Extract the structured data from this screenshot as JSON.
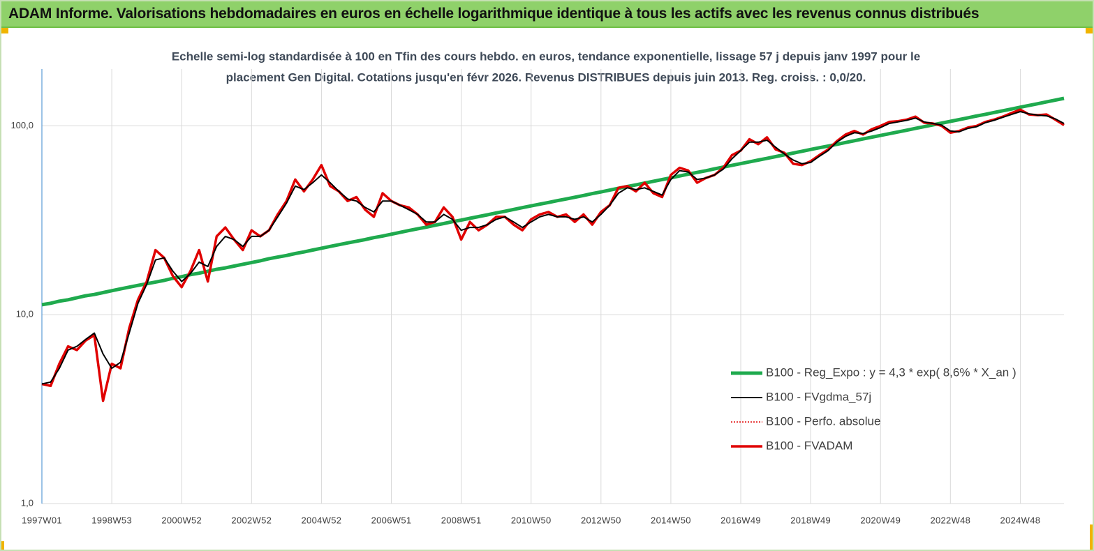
{
  "header": {
    "title": "ADAM Informe. Valorisations hebdomadaires en euros en échelle logarithmique identique à tous les actifs avec les revenus connus distribués"
  },
  "chart_data": {
    "type": "line",
    "title": [
      "Echelle semi-log standardisée à 100 en Tfin des cours hebdo. en euros, tendance exponentielle, lissage 57 j depuis janv 1997 pour le",
      "placement Gen Digital. Cotations jusqu'en févr 2026. Revenus DISTRIBUES depuis juin 2013. Reg. croiss. : 0,0/20."
    ],
    "categories": [
      "1997W01",
      null,
      null,
      null,
      null,
      null,
      null,
      null,
      "1998W53",
      null,
      null,
      null,
      null,
      null,
      null,
      null,
      "2000W52",
      null,
      null,
      null,
      null,
      null,
      null,
      null,
      "2002W52",
      null,
      null,
      null,
      null,
      null,
      null,
      null,
      "2004W52",
      null,
      null,
      null,
      null,
      null,
      null,
      null,
      "2006W51",
      null,
      null,
      null,
      null,
      null,
      null,
      null,
      "2008W51",
      null,
      null,
      null,
      null,
      null,
      null,
      null,
      "2010W50",
      null,
      null,
      null,
      null,
      null,
      null,
      null,
      "2012W50",
      null,
      null,
      null,
      null,
      null,
      null,
      null,
      "2014W50",
      null,
      null,
      null,
      null,
      null,
      null,
      null,
      "2016W49",
      null,
      null,
      null,
      null,
      null,
      null,
      null,
      "2018W49",
      null,
      null,
      null,
      null,
      null,
      null,
      null,
      "2020W49",
      null,
      null,
      null,
      null,
      null,
      null,
      null,
      "2022W48",
      null,
      null,
      null,
      null,
      null,
      null,
      null,
      "2024W48",
      null,
      null,
      null,
      null,
      null
    ],
    "log_scale": true,
    "ylim": [
      1,
      200
    ],
    "yticks": [
      {
        "value": 1,
        "label": "1,0"
      },
      {
        "value": 10,
        "label": "10,0"
      },
      {
        "value": 100,
        "label": "100,0"
      }
    ],
    "grid": true,
    "legend": "lower-right",
    "series": [
      {
        "name": "B100 - Reg_Expo : y = 4,3 * exp( 8,6% *  X_an )",
        "color": "#1faa4e",
        "width": 5,
        "dash": "none",
        "values": [
          11.3,
          11.5,
          11.8,
          12.0,
          12.3,
          12.6,
          12.8,
          13.1,
          13.4,
          13.7,
          14.0,
          14.3,
          14.6,
          14.9,
          15.2,
          15.6,
          15.9,
          16.3,
          16.6,
          17.0,
          17.4,
          17.7,
          18.1,
          18.5,
          18.9,
          19.3,
          19.8,
          20.2,
          20.6,
          21.1,
          21.5,
          22.0,
          22.5,
          23.0,
          23.5,
          24.0,
          24.5,
          25.0,
          25.6,
          26.1,
          26.7,
          27.3,
          27.9,
          28.5,
          29.1,
          29.8,
          30.4,
          31.1,
          31.7,
          32.4,
          33.1,
          33.8,
          34.6,
          35.3,
          36.1,
          36.9,
          37.7,
          38.5,
          39.3,
          40.2,
          41.0,
          41.9,
          42.8,
          43.8,
          44.7,
          45.7,
          46.7,
          47.7,
          48.7,
          49.8,
          50.9,
          52.0,
          53.1,
          54.3,
          55.5,
          56.7,
          57.9,
          59.2,
          60.5,
          61.8,
          63.1,
          64.5,
          65.9,
          67.3,
          68.8,
          70.3,
          71.8,
          73.4,
          75.0,
          76.6,
          78.2,
          79.9,
          81.7,
          83.4,
          85.3,
          87.1,
          89.0,
          90.9,
          92.9,
          94.9,
          97.0,
          99.1,
          101.3,
          103.5,
          105.7,
          108.0,
          110.4,
          112.8,
          115.2,
          117.7,
          120.3,
          122.9,
          125.6,
          128.3,
          131.1,
          134.0,
          136.9,
          139.9
        ]
      },
      {
        "name": "B100 - FVgdma_57j",
        "color": "#000000",
        "width": 2,
        "dash": "none",
        "values": [
          4.3,
          4.4,
          5.2,
          6.5,
          6.8,
          7.4,
          8.0,
          6.2,
          5.2,
          5.6,
          8.0,
          11.5,
          14.5,
          19.5,
          20,
          17,
          15,
          16.5,
          19,
          18,
          23,
          26,
          25,
          23,
          26,
          26,
          28,
          33,
          39,
          48,
          46,
          50,
          55,
          50,
          45,
          41,
          40,
          37,
          35,
          40,
          40,
          38,
          36,
          34,
          31,
          31,
          34,
          32,
          28,
          29,
          29,
          30,
          32,
          33,
          31,
          29,
          31,
          33,
          34,
          33,
          33,
          32,
          33,
          31,
          34,
          38,
          44,
          47,
          46,
          47,
          45,
          43,
          52,
          58,
          57,
          52,
          53,
          55,
          59,
          67,
          74,
          82,
          82,
          84,
          77,
          71,
          66,
          63,
          64,
          69,
          74,
          82,
          88,
          92,
          91,
          94,
          98,
          103,
          105,
          107,
          110,
          105,
          103,
          101,
          94,
          93,
          97,
          99,
          104,
          107,
          111,
          115,
          119,
          116,
          114,
          113,
          109,
          103
        ]
      },
      {
        "name": "B100 - Perfo. absolue",
        "color": "#e00000",
        "width": 1.5,
        "dash": "2 2",
        "values": [
          4.3,
          4.2,
          5.5,
          6.8,
          6.5,
          7.3,
          7.8,
          3.5,
          5.5,
          5.2,
          8.5,
          12,
          15,
          22,
          20,
          16,
          14,
          17,
          22,
          15,
          26,
          29,
          25,
          22,
          28,
          26,
          28,
          34,
          40,
          52,
          45,
          52,
          62,
          48,
          45,
          40,
          42,
          36,
          33,
          44,
          40,
          38,
          37,
          34,
          30,
          31,
          37,
          33,
          25,
          31,
          28,
          30,
          33,
          33,
          30,
          28,
          32,
          34,
          35,
          33,
          34,
          31,
          34,
          30,
          35,
          38,
          47,
          48,
          45,
          50,
          44,
          42,
          55,
          60,
          58,
          50,
          53,
          55,
          60,
          70,
          74,
          85,
          80,
          87,
          75,
          72,
          63,
          62,
          65,
          70,
          75,
          83,
          90,
          94,
          90,
          96,
          100,
          105,
          106,
          108,
          112,
          104,
          103,
          100,
          92,
          94,
          98,
          100,
          105,
          108,
          112,
          117,
          122,
          115,
          114,
          115,
          108,
          101
        ]
      },
      {
        "name": "B100 - FVADAM",
        "color": "#e00000",
        "width": 3.5,
        "dash": "none",
        "values": [
          4.3,
          4.2,
          5.5,
          6.8,
          6.5,
          7.3,
          7.8,
          3.5,
          5.5,
          5.2,
          8.5,
          12,
          15,
          22,
          20,
          16,
          14,
          17,
          22,
          15,
          26,
          29,
          25,
          22,
          28,
          26,
          28,
          34,
          40,
          52,
          45,
          52,
          62,
          48,
          45,
          40,
          42,
          36,
          33,
          44,
          40,
          38,
          37,
          34,
          30,
          31,
          37,
          33,
          25,
          31,
          28,
          30,
          33,
          33,
          30,
          28,
          32,
          34,
          35,
          33,
          34,
          31,
          34,
          30,
          35,
          38,
          47,
          48,
          45,
          50,
          44,
          42,
          55,
          60,
          58,
          50,
          53,
          55,
          60,
          70,
          74,
          85,
          80,
          87,
          75,
          72,
          63,
          62,
          65,
          70,
          75,
          83,
          90,
          94,
          90,
          96,
          100,
          105,
          106,
          108,
          112,
          104,
          103,
          100,
          92,
          94,
          98,
          100,
          105,
          108,
          112,
          117,
          122,
          115,
          114,
          115,
          108,
          101
        ]
      }
    ]
  }
}
